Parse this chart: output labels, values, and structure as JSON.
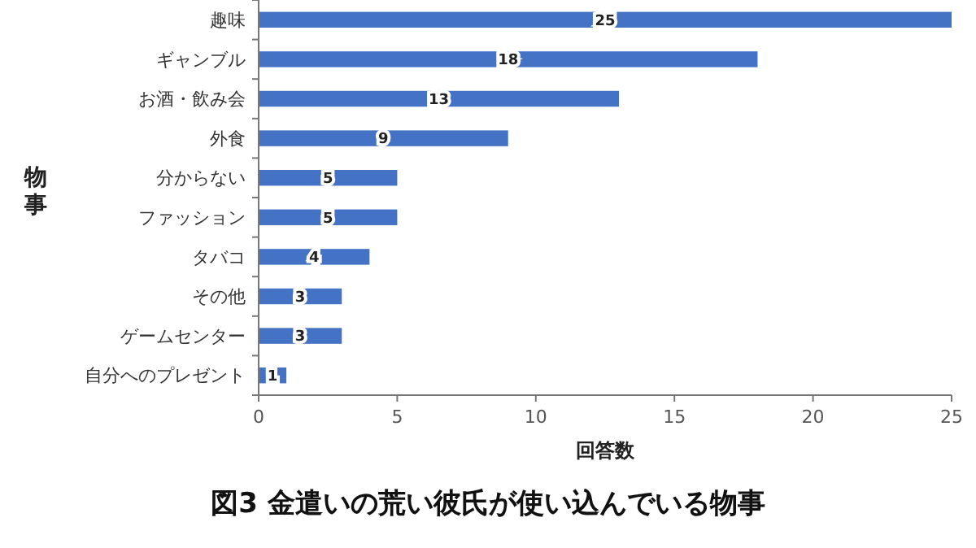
{
  "chart_data": {
    "type": "bar",
    "orientation": "horizontal",
    "title": "図3 金遣いの荒い彼氏が使い込んでいる物事",
    "xlabel": "回答数",
    "ylabel": "物事",
    "categories": [
      "趣味",
      "ギャンブル",
      "お酒・飲み会",
      "外食",
      "分からない",
      "ファッション",
      "タバコ",
      "その他",
      "ゲームセンター",
      "自分へのプレゼント"
    ],
    "values": [
      25,
      18,
      13,
      9,
      5,
      5,
      4,
      3,
      3,
      1
    ],
    "color": "#4472c4",
    "data_labels": true,
    "xlim": [
      0,
      25
    ],
    "xticks": [
      0,
      5,
      10,
      15,
      20,
      25
    ],
    "grid": false
  }
}
